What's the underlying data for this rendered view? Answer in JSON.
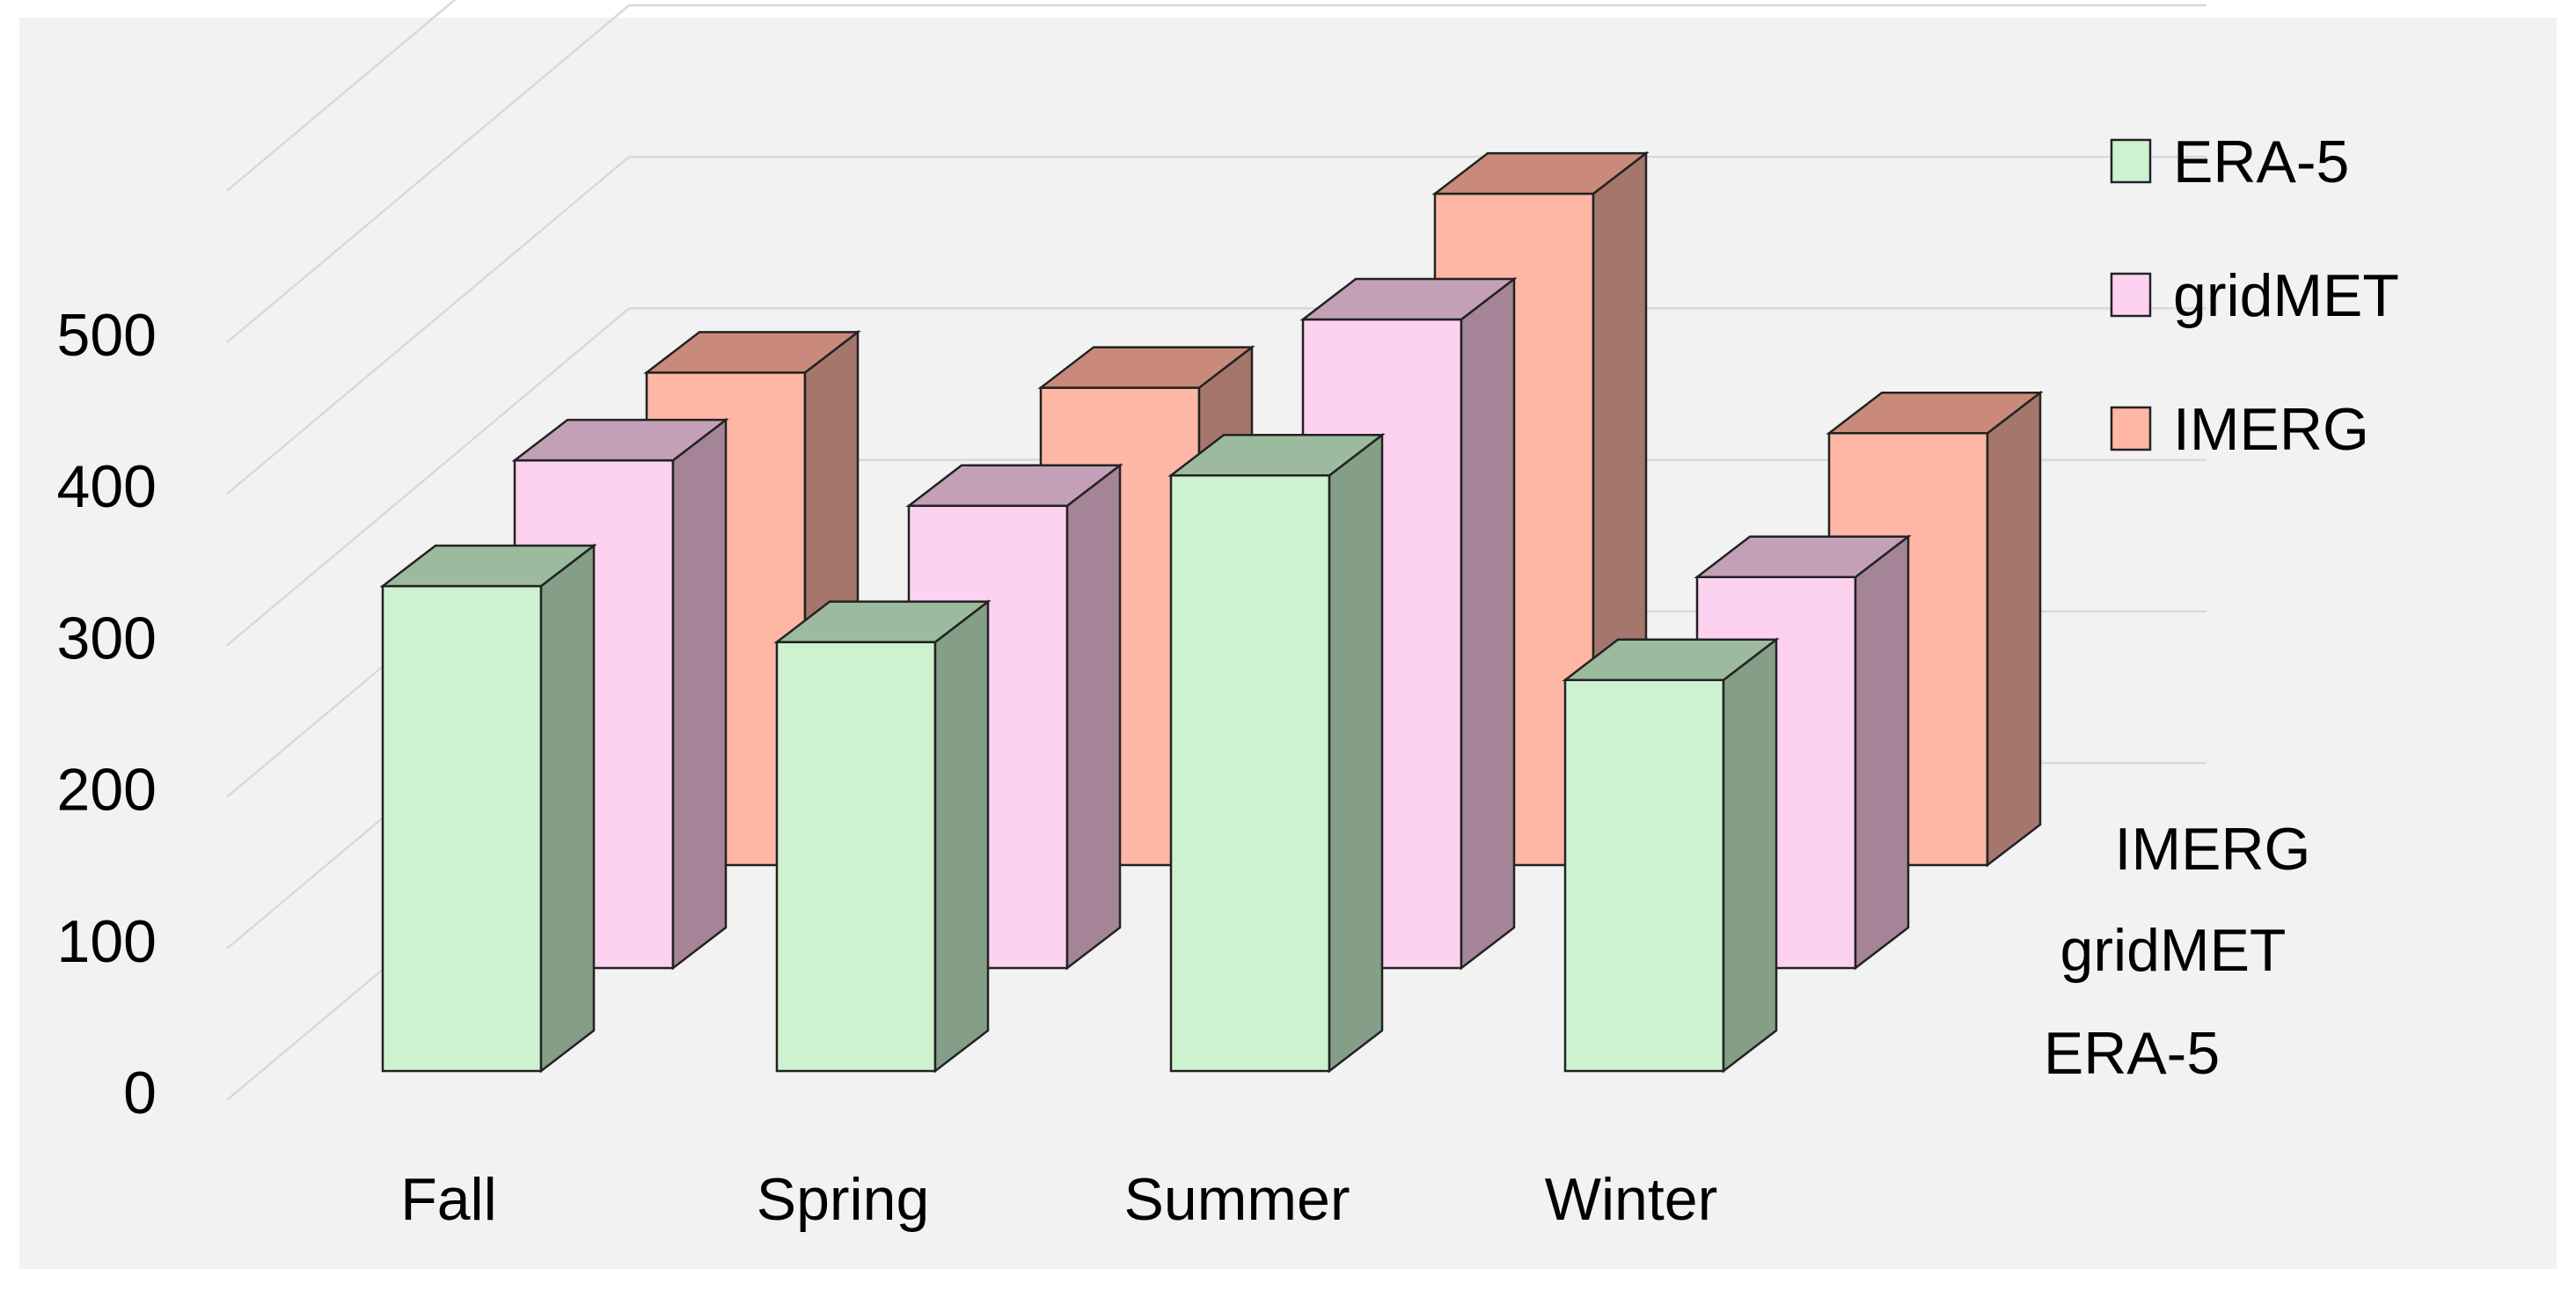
{
  "chart_data": {
    "type": "bar",
    "title": "",
    "xlabel": "",
    "ylabel": "",
    "ylim": [
      0,
      500
    ],
    "yticks": [
      0,
      100,
      200,
      300,
      400,
      500
    ],
    "grid": true,
    "three_d": true,
    "categories": [
      "Fall",
      "Spring",
      "Summer",
      "Winter"
    ],
    "series": [
      {
        "name": "ERA-5",
        "values": [
          320,
          283,
          393,
          258
        ],
        "color": "#cef2d0",
        "side_color": "#849e87",
        "top_color": "#9cba9e"
      },
      {
        "name": "gridMET",
        "values": [
          335,
          305,
          428,
          258
        ],
        "color": "#fdd2f1",
        "side_color": "#a58497",
        "top_color": "#c4a0b8"
      },
      {
        "name": "IMERG",
        "values": [
          325,
          315,
          443,
          285
        ],
        "color": "#fdb7a4",
        "side_color": "#a5766c",
        "top_color": "#c98a7b"
      }
    ],
    "depth_labels": [
      "ERA-5",
      "gridMET",
      "IMERG"
    ],
    "legend": {
      "position": "top-right",
      "entries": [
        "ERA-5",
        "gridMET",
        "IMERG"
      ]
    },
    "background_color": "#f2f2f2",
    "grid_color": "#d9d9d9"
  }
}
